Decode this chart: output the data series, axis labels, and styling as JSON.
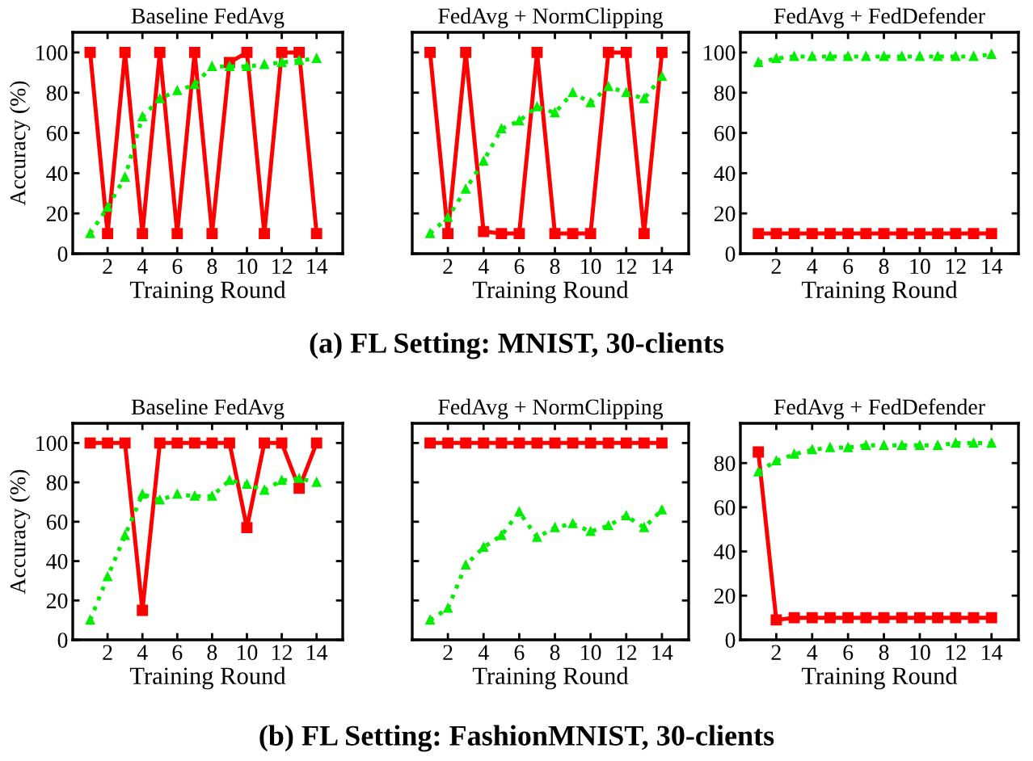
{
  "chart_data": [
    {
      "type": "line",
      "title": "Baseline FedAvg",
      "xlabel": "Training Round",
      "ylabel": "Accuracy (%)",
      "x": [
        1,
        2,
        3,
        4,
        5,
        6,
        7,
        8,
        9,
        10,
        11,
        12,
        13,
        14
      ],
      "xlim": [
        0,
        15.5
      ],
      "xticks": [
        2,
        4,
        6,
        8,
        10,
        12,
        14
      ],
      "ylim": [
        0,
        110
      ],
      "yticks": [
        0,
        20,
        40,
        60,
        80,
        100
      ],
      "series": [
        {
          "color": "#ff0000",
          "marker": "square",
          "line_style": "solid",
          "values": [
            100,
            10,
            100,
            10,
            100,
            10,
            100,
            10,
            95,
            100,
            10,
            100,
            100,
            10
          ]
        },
        {
          "color": "#00ee00",
          "marker": "triangle",
          "line_style": "dotted",
          "values": [
            10,
            23,
            38,
            68,
            77,
            81,
            84,
            93,
            93,
            93,
            94,
            95,
            96,
            97
          ]
        }
      ],
      "annotations": [
        "(a) FL Setting: MNIST, 30-clients"
      ]
    },
    {
      "type": "line",
      "title": "FedAvg + NormClipping",
      "xlabel": "Training Round",
      "x": [
        1,
        2,
        3,
        4,
        5,
        6,
        7,
        8,
        9,
        10,
        11,
        12,
        13,
        14
      ],
      "xlim": [
        0,
        15.5
      ],
      "xticks": [
        2,
        4,
        6,
        8,
        10,
        12,
        14
      ],
      "ylim": [
        0,
        110
      ],
      "yticks": [
        0,
        20,
        40,
        60,
        80,
        100
      ],
      "tick_labels": "x",
      "series": [
        {
          "color": "#ff0000",
          "marker": "square",
          "line_style": "solid",
          "values": [
            100,
            10,
            100,
            11,
            10,
            10,
            100,
            10,
            10,
            10,
            100,
            100,
            10,
            100
          ]
        },
        {
          "color": "#00ee00",
          "marker": "triangle",
          "line_style": "dotted",
          "values": [
            10,
            18,
            32,
            46,
            62,
            66,
            73,
            70,
            80,
            75,
            83,
            80,
            77,
            88
          ]
        }
      ]
    },
    {
      "type": "line",
      "title": "FedAvg + FedDefender",
      "xlabel": "Training Round",
      "x": [
        1,
        2,
        3,
        4,
        5,
        6,
        7,
        8,
        9,
        10,
        11,
        12,
        13,
        14
      ],
      "xlim": [
        0,
        15.5
      ],
      "xticks": [
        2,
        4,
        6,
        8,
        10,
        12,
        14
      ],
      "ylim": [
        0,
        110
      ],
      "yticks": [
        0,
        20,
        40,
        60,
        80,
        100
      ],
      "series": [
        {
          "color": "#ff0000",
          "marker": "square",
          "line_style": "solid",
          "values": [
            10,
            10,
            10,
            10,
            10,
            10,
            10,
            10,
            10,
            10,
            10,
            10,
            10,
            10
          ]
        },
        {
          "color": "#00ee00",
          "marker": "triangle",
          "line_style": "dotted",
          "values": [
            95,
            97,
            98,
            98,
            98,
            98,
            98,
            98,
            98,
            98,
            98,
            98,
            98,
            99
          ]
        }
      ]
    },
    {
      "type": "line",
      "title": "Baseline FedAvg",
      "xlabel": "Training Round",
      "ylabel": "Accuracy (%)",
      "x": [
        1,
        2,
        3,
        4,
        5,
        6,
        7,
        8,
        9,
        10,
        11,
        12,
        13,
        14
      ],
      "xlim": [
        0,
        15.5
      ],
      "xticks": [
        2,
        4,
        6,
        8,
        10,
        12,
        14
      ],
      "ylim": [
        0,
        110
      ],
      "yticks": [
        0,
        20,
        40,
        60,
        80,
        100
      ],
      "series": [
        {
          "color": "#ff0000",
          "marker": "square",
          "line_style": "solid",
          "values": [
            100,
            100,
            100,
            15,
            100,
            100,
            100,
            100,
            100,
            57,
            100,
            100,
            77,
            100
          ]
        },
        {
          "color": "#00ee00",
          "marker": "triangle",
          "line_style": "dotted",
          "values": [
            10,
            32,
            53,
            74,
            71,
            74,
            73,
            73,
            81,
            79,
            76,
            81,
            82,
            80
          ]
        }
      ],
      "annotations": [
        "(b) FL Setting: FashionMNIST, 30-clients"
      ]
    },
    {
      "type": "line",
      "title": "FedAvg + NormClipping",
      "xlabel": "Training Round",
      "x": [
        1,
        2,
        3,
        4,
        5,
        6,
        7,
        8,
        9,
        10,
        11,
        12,
        13,
        14
      ],
      "xlim": [
        0,
        15.5
      ],
      "xticks": [
        2,
        4,
        6,
        8,
        10,
        12,
        14
      ],
      "ylim": [
        0,
        110
      ],
      "yticks": [
        0,
        20,
        40,
        60,
        80,
        100
      ],
      "tick_labels": "x",
      "series": [
        {
          "color": "#ff0000",
          "marker": "square",
          "line_style": "solid",
          "values": [
            100,
            100,
            100,
            100,
            100,
            100,
            100,
            100,
            100,
            100,
            100,
            100,
            100,
            100
          ]
        },
        {
          "color": "#00ee00",
          "marker": "triangle",
          "line_style": "dotted",
          "values": [
            10,
            16,
            38,
            47,
            53,
            65,
            52,
            57,
            59,
            55,
            58,
            63,
            57,
            66
          ]
        }
      ]
    },
    {
      "type": "line",
      "title": "FedAvg + FedDefender",
      "xlabel": "Training Round",
      "x": [
        1,
        2,
        3,
        4,
        5,
        6,
        7,
        8,
        9,
        10,
        11,
        12,
        13,
        14
      ],
      "xlim": [
        0,
        15.5
      ],
      "xticks": [
        2,
        4,
        6,
        8,
        10,
        12,
        14
      ],
      "ylim": [
        0,
        98
      ],
      "yticks": [
        0,
        20,
        40,
        60,
        80
      ],
      "series": [
        {
          "color": "#ff0000",
          "marker": "square",
          "line_style": "solid",
          "values": [
            85,
            9,
            10,
            10,
            10,
            10,
            10,
            10,
            10,
            10,
            10,
            10,
            10,
            10
          ]
        },
        {
          "color": "#00ee00",
          "marker": "triangle",
          "line_style": "dotted",
          "values": [
            76,
            81,
            84,
            86,
            87,
            87,
            88,
            88,
            88,
            88,
            88,
            89,
            89,
            89
          ]
        }
      ]
    }
  ]
}
